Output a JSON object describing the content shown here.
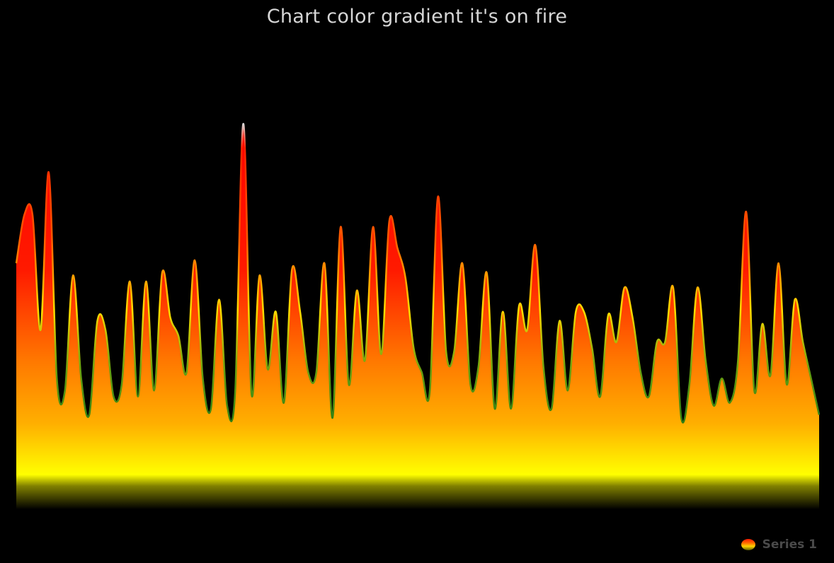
{
  "title": "Chart color gradient it's on fire",
  "legend": {
    "series_label": "Series 1"
  },
  "colors": {
    "background": "#000000",
    "gradient_top": "#ff0000",
    "gradient_mid": "#ff8c00",
    "gradient_low": "#ffff00",
    "line_low": "#2e7d12",
    "line_mid": "#ffdd00",
    "line_high": "#ff2200",
    "line_peak": "#d8d8d8"
  },
  "chart_data": {
    "type": "area",
    "title": "Chart color gradient it's on fire",
    "series": [
      {
        "name": "Series 1",
        "values": [
          52,
          68,
          68,
          30,
          82,
          14,
          10,
          48,
          14,
          2,
          33,
          30,
          8,
          12,
          46,
          8,
          46,
          10,
          49,
          34,
          28,
          16,
          53,
          14,
          4,
          40,
          5,
          10,
          98,
          9,
          48,
          17,
          36,
          6,
          50,
          36,
          16,
          16,
          52,
          1,
          64,
          12,
          43,
          20,
          64,
          22,
          66,
          57,
          47,
          24,
          16,
          10,
          74,
          23,
          23,
          52,
          12,
          18,
          49,
          4,
          36,
          4,
          38,
          30,
          58,
          18,
          4,
          33,
          10,
          36,
          36,
          24,
          8,
          35,
          26,
          44,
          34,
          16,
          8,
          26,
          26,
          44,
          1,
          12,
          44,
          20,
          5,
          14,
          6,
          20,
          69,
          10,
          32,
          15,
          52,
          12,
          40,
          26,
          14,
          2
        ],
        "style": "smooth"
      }
    ],
    "ylim": [
      0,
      120
    ],
    "xlim": [
      0,
      99
    ],
    "grid": false,
    "legend_position": "bottom-right"
  }
}
